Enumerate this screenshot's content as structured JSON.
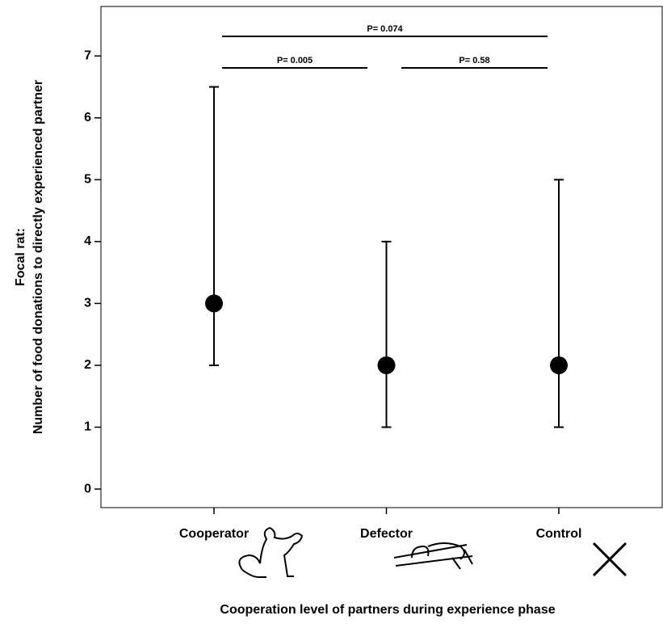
{
  "chart_data": {
    "type": "dot-range",
    "x_label": "Cooperation level of partners during experience phase",
    "y_label": [
      "Focal rat:",
      "Number of food donations to directly experienced partner"
    ],
    "categories": [
      "Cooperator",
      "Defector",
      "Control"
    ],
    "values": [
      3,
      2,
      2
    ],
    "lower": [
      2,
      1,
      1
    ],
    "upper": [
      6.5,
      4,
      5
    ],
    "color": "#000000",
    "ylim": [
      -0.3,
      7.8
    ],
    "yticks": [
      0,
      1,
      2,
      3,
      4,
      5,
      6,
      7
    ],
    "annotations": [
      "P= 0.074",
      "P= 0.005",
      "P= 0.58"
    ]
  }
}
